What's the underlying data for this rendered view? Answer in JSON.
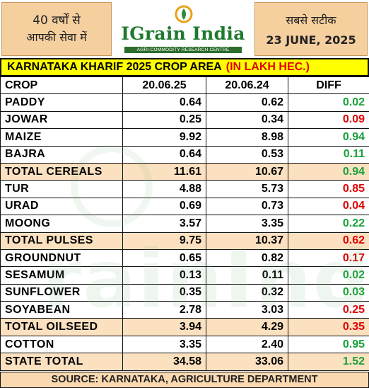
{
  "header": {
    "left_line1": "40 वर्षों से",
    "left_line2": "आपकी सेवा में",
    "brand": "IGrain India",
    "tagline": "AGRI-COMMODITY RESEARCH CENTRE",
    "right_line1": "सबसे सटीक",
    "date": "23 JUNE, 2025"
  },
  "title": {
    "main": "KARNATAKA KHARIF 2025 CROP AREA",
    "unit": "(IN LAKH HEC.)"
  },
  "table": {
    "headers": [
      "CROP",
      "20.06.25",
      "20.06.24",
      "DIFF"
    ],
    "rows": [
      {
        "crop": "PADDY",
        "v2025": "0.64",
        "v2024": "0.62",
        "diff": "0.02",
        "sign": "pos",
        "total": false
      },
      {
        "crop": "JOWAR",
        "v2025": "0.25",
        "v2024": "0.34",
        "diff": "0.09",
        "sign": "neg",
        "total": false
      },
      {
        "crop": "MAIZE",
        "v2025": "9.92",
        "v2024": "8.98",
        "diff": "0.94",
        "sign": "pos",
        "total": false
      },
      {
        "crop": "BAJRA",
        "v2025": "0.64",
        "v2024": "0.53",
        "diff": "0.11",
        "sign": "pos",
        "total": false
      },
      {
        "crop": "TOTAL CEREALS",
        "v2025": "11.61",
        "v2024": "10.67",
        "diff": "0.94",
        "sign": "pos",
        "total": true
      },
      {
        "crop": "TUR",
        "v2025": "4.88",
        "v2024": "5.73",
        "diff": "0.85",
        "sign": "neg",
        "total": false
      },
      {
        "crop": "URAD",
        "v2025": "0.69",
        "v2024": "0.73",
        "diff": "0.04",
        "sign": "neg",
        "total": false
      },
      {
        "crop": "MOONG",
        "v2025": "3.57",
        "v2024": "3.35",
        "diff": "0.22",
        "sign": "pos",
        "total": false
      },
      {
        "crop": "TOTAL PULSES",
        "v2025": "9.75",
        "v2024": "10.37",
        "diff": "0.62",
        "sign": "neg",
        "total": true
      },
      {
        "crop": "GROUNDNUT",
        "v2025": "0.65",
        "v2024": "0.82",
        "diff": "0.17",
        "sign": "neg",
        "total": false
      },
      {
        "crop": "SESAMUM",
        "v2025": "0.13",
        "v2024": "0.11",
        "diff": "0.02",
        "sign": "pos",
        "total": false
      },
      {
        "crop": "SUNFLOWER",
        "v2025": "0.35",
        "v2024": "0.32",
        "diff": "0.03",
        "sign": "pos",
        "total": false
      },
      {
        "crop": "SOYABEAN",
        "v2025": "2.78",
        "v2024": "3.03",
        "diff": "0.25",
        "sign": "neg",
        "total": false
      },
      {
        "crop": "TOTAL OILSEED",
        "v2025": "3.94",
        "v2024": "4.29",
        "diff": "0.35",
        "sign": "neg",
        "total": true
      },
      {
        "crop": "COTTON",
        "v2025": "3.35",
        "v2024": "2.40",
        "diff": "0.95",
        "sign": "pos",
        "total": false
      },
      {
        "crop": "STATE TOTAL",
        "v2025": "34.58",
        "v2024": "33.06",
        "diff": "1.52",
        "sign": "pos",
        "total": true
      }
    ]
  },
  "source": "SOURCE: KARNATAKA, AGRICULTURE DEPARTMENT",
  "watermark": "rainIndia",
  "colors": {
    "positive": "#18a23a",
    "negative": "#e00000",
    "title_bg": "#ffff00",
    "header_box": "#f6cf9f",
    "brand_green": "#1f7a2e"
  }
}
